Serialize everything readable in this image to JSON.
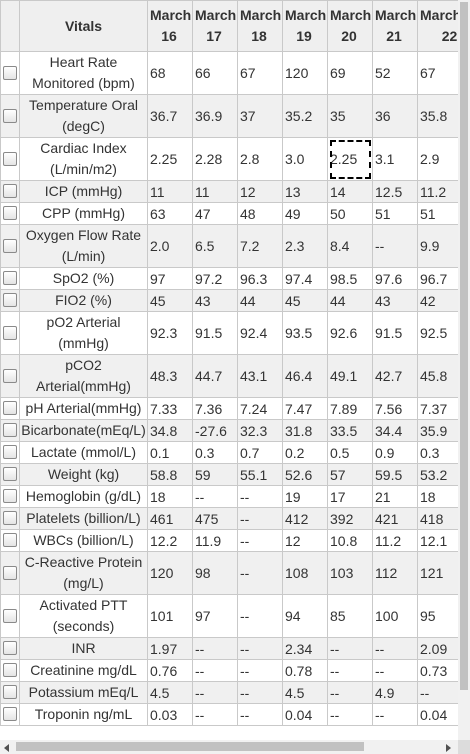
{
  "header": {
    "vitals_label": "Vitals",
    "dates": [
      {
        "month": "March",
        "day": "16"
      },
      {
        "month": "March",
        "day": "17"
      },
      {
        "month": "March",
        "day": "18"
      },
      {
        "month": "March",
        "day": "19"
      },
      {
        "month": "March",
        "day": "20"
      },
      {
        "month": "March",
        "day": "21"
      },
      {
        "month": "March",
        "day": "22"
      }
    ]
  },
  "selected_cell": {
    "row": 2,
    "col": 4
  },
  "rows": [
    {
      "name": "Heart Rate Monitored (bpm)",
      "values": [
        "68",
        "66",
        "67",
        "120",
        "69",
        "52",
        "67"
      ]
    },
    {
      "name": "Temperature Oral (degC)",
      "values": [
        "36.7",
        "36.9",
        "37",
        "35.2",
        "35",
        "36",
        "35.8"
      ]
    },
    {
      "name": "Cardiac Index (L/min/m2)",
      "values": [
        "2.25",
        "2.28",
        "2.8",
        "3.0",
        "2.25",
        "3.1",
        "2.9"
      ]
    },
    {
      "name": "ICP (mmHg)",
      "values": [
        "11",
        "11",
        "12",
        "13",
        "14",
        "12.5",
        "11.2"
      ]
    },
    {
      "name": "CPP (mmHg)",
      "values": [
        "63",
        "47",
        "48",
        "49",
        "50",
        "51",
        "51"
      ]
    },
    {
      "name": "Oxygen Flow Rate (L/min)",
      "values": [
        "2.0",
        "6.5",
        "7.2",
        "2.3",
        "8.4",
        "--",
        "9.9"
      ]
    },
    {
      "name": "SpO2 (%)",
      "values": [
        "97",
        "97.2",
        "96.3",
        "97.4",
        "98.5",
        "97.6",
        "96.7"
      ]
    },
    {
      "name": "FIO2 (%)",
      "values": [
        "45",
        "43",
        "44",
        "45",
        "44",
        "43",
        "42"
      ]
    },
    {
      "name": "pO2 Arterial (mmHg)",
      "values": [
        "92.3",
        "91.5",
        "92.4",
        "93.5",
        "92.6",
        "91.5",
        "92.5"
      ]
    },
    {
      "name": "pCO2 Arterial(mmHg)",
      "values": [
        "48.3",
        "44.7",
        "43.1",
        "46.4",
        "49.1",
        "42.7",
        "45.8"
      ]
    },
    {
      "name": "pH Arterial(mmHg)",
      "values": [
        "7.33",
        "7.36",
        "7.24",
        "7.47",
        "7.89",
        "7.56",
        "7.37"
      ]
    },
    {
      "name": "Bicarbonate(mEq/L)",
      "values": [
        "34.8",
        "-27.6",
        "32.3",
        "31.8",
        "33.5",
        "34.4",
        "35.9"
      ]
    },
    {
      "name": "Lactate (mmol/L)",
      "values": [
        "0.1",
        "0.3",
        "0.7",
        "0.2",
        "0.5",
        "0.9",
        "0.3"
      ]
    },
    {
      "name": "Weight (kg)",
      "values": [
        "58.8",
        "59",
        "55.1",
        "52.6",
        "57",
        "59.5",
        "53.2"
      ]
    },
    {
      "name": "Hemoglobin (g/dL)",
      "values": [
        "18",
        "--",
        "--",
        "19",
        "17",
        "21",
        "18"
      ]
    },
    {
      "name": "Platelets (billion/L)",
      "values": [
        "461",
        "475",
        "--",
        "412",
        "392",
        "421",
        "418"
      ]
    },
    {
      "name": "WBCs (billion/L)",
      "values": [
        "12.2",
        "11.9",
        "--",
        "12",
        "10.8",
        "11.2",
        "12.1"
      ]
    },
    {
      "name": "C-Reactive Protein (mg/L)",
      "values": [
        "120",
        "98",
        "--",
        "108",
        "103",
        "112",
        "121"
      ]
    },
    {
      "name": "Activated PTT (seconds)",
      "values": [
        "101",
        "97",
        "--",
        "94",
        "85",
        "100",
        "95"
      ]
    },
    {
      "name": "INR",
      "values": [
        "1.97",
        "--",
        "--",
        "2.34",
        "--",
        "--",
        "2.09"
      ]
    },
    {
      "name": "Creatinine mg/dL",
      "values": [
        "0.76",
        "--",
        "--",
        "0.78",
        "--",
        "--",
        "0.73"
      ]
    },
    {
      "name": "Potassium mEq/L",
      "values": [
        "4.5",
        "--",
        "--",
        "4.5",
        "--",
        "4.9",
        "--"
      ]
    },
    {
      "name": "Troponin ng/mL",
      "values": [
        "0.03",
        "--",
        "--",
        "0.04",
        "--",
        "--",
        "0.04"
      ]
    }
  ]
}
